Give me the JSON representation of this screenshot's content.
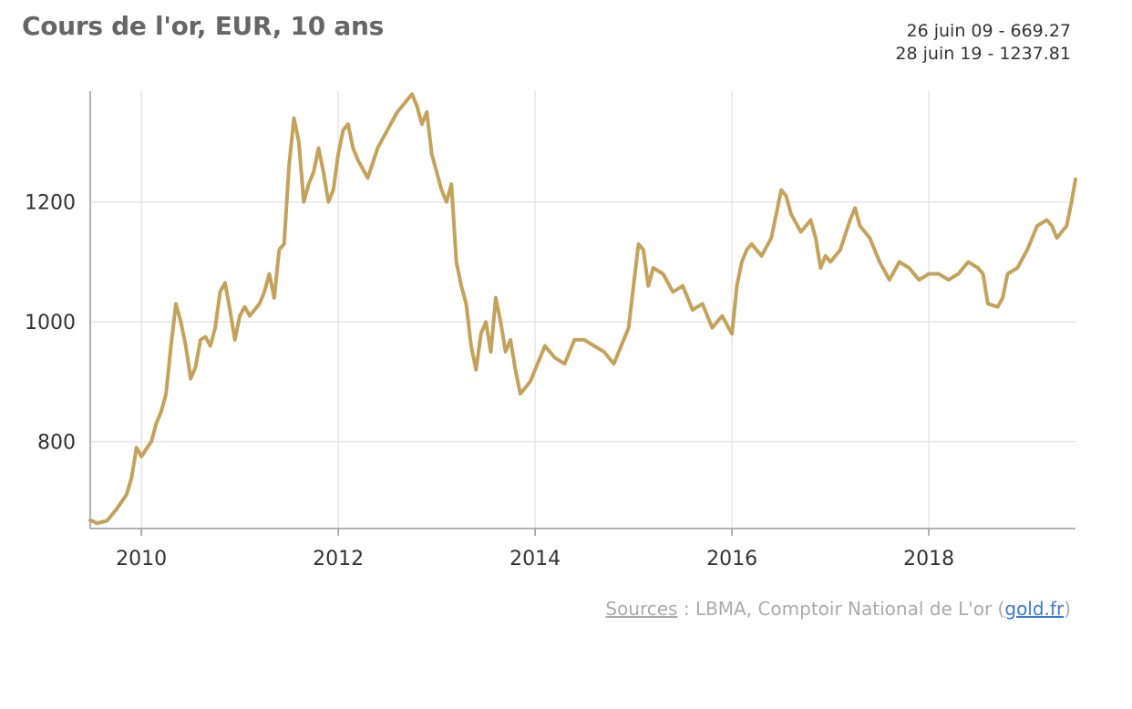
{
  "header": {
    "title": "Cours de l'or, EUR, 10 ans",
    "range_start": "26 juin 09 - 669.27",
    "range_end": "28 juin 19 - 1237.81"
  },
  "footer": {
    "sources_label": "Sources",
    "sources_sep": " : ",
    "sources_text": "LBMA, Comptoir National de L'or (",
    "gold_link": "gold.fr",
    "close_paren": ")"
  },
  "colors": {
    "line": "#c4a25a",
    "grid": "#e6e6e6",
    "axis": "#999999"
  },
  "chart_data": {
    "type": "line",
    "title": "Cours de l'or, EUR, 10 ans",
    "xlabel": "",
    "ylabel": "",
    "x_ticks": [
      "2010",
      "2012",
      "2014",
      "2016",
      "2018"
    ],
    "y_ticks": [
      800,
      1000,
      1200
    ],
    "xlim": [
      2009.48,
      2019.49
    ],
    "ylim": [
      655,
      1385
    ],
    "grid": true,
    "legend": "none",
    "series": [
      {
        "x": [
          2009.48,
          2009.55,
          2009.65,
          2009.75,
          2009.85,
          2009.9,
          2009.95,
          2010.0,
          2010.05,
          2010.1,
          2010.15,
          2010.2,
          2010.25,
          2010.3,
          2010.35,
          2010.4,
          2010.45,
          2010.5,
          2010.55,
          2010.6,
          2010.65,
          2010.7,
          2010.75,
          2010.8,
          2010.85,
          2010.9,
          2010.95,
          2011.0,
          2011.05,
          2011.1,
          2011.15,
          2011.2,
          2011.25,
          2011.3,
          2011.35,
          2011.4,
          2011.45,
          2011.5,
          2011.55,
          2011.6,
          2011.65,
          2011.7,
          2011.75,
          2011.8,
          2011.85,
          2011.9,
          2011.95,
          2012.0,
          2012.05,
          2012.1,
          2012.15,
          2012.2,
          2012.3,
          2012.4,
          2012.5,
          2012.6,
          2012.7,
          2012.75,
          2012.8,
          2012.85,
          2012.9,
          2012.95,
          2013.0,
          2013.05,
          2013.1,
          2013.15,
          2013.2,
          2013.25,
          2013.3,
          2013.35,
          2013.4,
          2013.45,
          2013.5,
          2013.55,
          2013.6,
          2013.65,
          2013.7,
          2013.75,
          2013.8,
          2013.85,
          2013.9,
          2013.95,
          2014.0,
          2014.1,
          2014.2,
          2014.3,
          2014.4,
          2014.5,
          2014.6,
          2014.7,
          2014.8,
          2014.85,
          2014.9,
          2014.95,
          2015.0,
          2015.05,
          2015.1,
          2015.15,
          2015.2,
          2015.3,
          2015.4,
          2015.5,
          2015.6,
          2015.7,
          2015.8,
          2015.9,
          2016.0,
          2016.05,
          2016.1,
          2016.15,
          2016.2,
          2016.3,
          2016.4,
          2016.5,
          2016.55,
          2016.6,
          2016.7,
          2016.8,
          2016.85,
          2016.9,
          2016.95,
          2017.0,
          2017.1,
          2017.2,
          2017.25,
          2017.3,
          2017.4,
          2017.5,
          2017.6,
          2017.7,
          2017.8,
          2017.9,
          2018.0,
          2018.1,
          2018.2,
          2018.3,
          2018.4,
          2018.5,
          2018.55,
          2018.6,
          2018.7,
          2018.75,
          2018.8,
          2018.9,
          2019.0,
          2019.1,
          2019.2,
          2019.25,
          2019.3,
          2019.4,
          2019.45,
          2019.49
        ],
        "y": [
          669,
          664,
          668,
          688,
          712,
          740,
          790,
          775,
          788,
          800,
          830,
          850,
          880,
          960,
          1030,
          1000,
          960,
          905,
          925,
          970,
          975,
          960,
          990,
          1050,
          1065,
          1020,
          970,
          1010,
          1025,
          1010,
          1020,
          1030,
          1050,
          1080,
          1040,
          1120,
          1130,
          1260,
          1340,
          1300,
          1200,
          1230,
          1250,
          1290,
          1250,
          1200,
          1220,
          1280,
          1320,
          1330,
          1290,
          1270,
          1240,
          1290,
          1320,
          1350,
          1370,
          1380,
          1360,
          1330,
          1350,
          1280,
          1250,
          1220,
          1200,
          1230,
          1100,
          1060,
          1030,
          960,
          920,
          980,
          1000,
          950,
          1040,
          1000,
          950,
          970,
          920,
          880,
          890,
          900,
          920,
          960,
          940,
          930,
          970,
          970,
          960,
          950,
          930,
          950,
          970,
          990,
          1060,
          1130,
          1120,
          1060,
          1090,
          1080,
          1050,
          1060,
          1020,
          1030,
          990,
          1010,
          980,
          1060,
          1100,
          1120,
          1130,
          1110,
          1140,
          1220,
          1210,
          1180,
          1150,
          1170,
          1140,
          1090,
          1110,
          1100,
          1120,
          1170,
          1190,
          1160,
          1140,
          1100,
          1070,
          1100,
          1090,
          1070,
          1080,
          1080,
          1070,
          1080,
          1100,
          1090,
          1080,
          1030,
          1025,
          1040,
          1080,
          1090,
          1120,
          1160,
          1170,
          1160,
          1140,
          1160,
          1200,
          1238
        ]
      }
    ]
  }
}
